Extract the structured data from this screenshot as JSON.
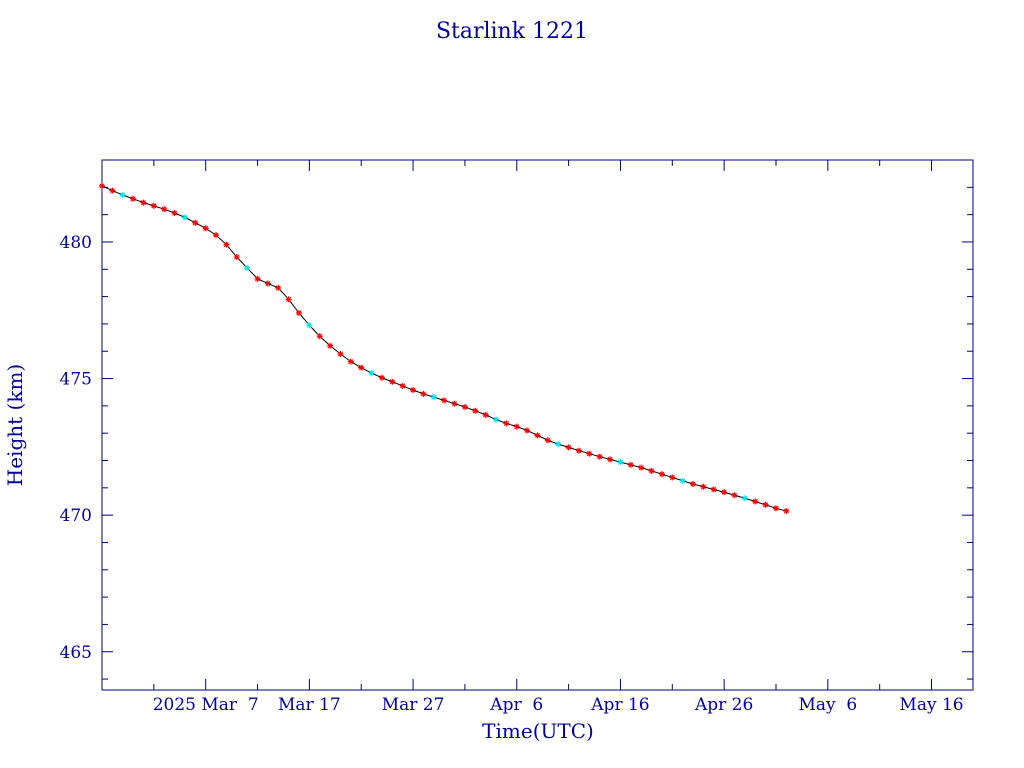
{
  "chart_data": {
    "type": "scatter",
    "title": "Starlink 1221",
    "xlabel": "Time(UTC)",
    "ylabel": "Height (km)",
    "x_range": [
      "2025-02-25",
      "2025-05-20"
    ],
    "ylim": [
      463.6,
      483.0
    ],
    "x_ticks": [
      {
        "date": "2025-03-07",
        "label": "2025 Mar  7"
      },
      {
        "date": "2025-03-17",
        "label": "Mar 17"
      },
      {
        "date": "2025-03-27",
        "label": "Mar 27"
      },
      {
        "date": "2025-04-06",
        "label": "Apr  6"
      },
      {
        "date": "2025-04-16",
        "label": "Apr 16"
      },
      {
        "date": "2025-04-26",
        "label": "Apr 26"
      },
      {
        "date": "2025-05-06",
        "label": "May  6"
      },
      {
        "date": "2025-05-16",
        "label": "May 16"
      }
    ],
    "y_ticks": [
      {
        "value": 465,
        "label": "465"
      },
      {
        "value": 470,
        "label": "470"
      },
      {
        "value": 475,
        "label": "475"
      },
      {
        "value": 480,
        "label": "480"
      }
    ],
    "grid": false,
    "colors": {
      "axis": "#000080",
      "text": "#0000a0",
      "points": "#ff0000",
      "highlight_points": "#00e5ee",
      "line": "#000000"
    },
    "series": [
      {
        "x": [
          "2025-02-25",
          "2025-02-26",
          "2025-02-27",
          "2025-02-28",
          "2025-03-01",
          "2025-03-02",
          "2025-03-03",
          "2025-03-04",
          "2025-03-05",
          "2025-03-06",
          "2025-03-07",
          "2025-03-08",
          "2025-03-09",
          "2025-03-10",
          "2025-03-11",
          "2025-03-12",
          "2025-03-13",
          "2025-03-14",
          "2025-03-15",
          "2025-03-16",
          "2025-03-17",
          "2025-03-18",
          "2025-03-19",
          "2025-03-20",
          "2025-03-21",
          "2025-03-22",
          "2025-03-23",
          "2025-03-24",
          "2025-03-25",
          "2025-03-26",
          "2025-03-27",
          "2025-03-28",
          "2025-03-29",
          "2025-03-30",
          "2025-03-31",
          "2025-04-01",
          "2025-04-02",
          "2025-04-03",
          "2025-04-04",
          "2025-04-05",
          "2025-04-06",
          "2025-04-07",
          "2025-04-08",
          "2025-04-09",
          "2025-04-10",
          "2025-04-11",
          "2025-04-12",
          "2025-04-13",
          "2025-04-14",
          "2025-04-15",
          "2025-04-16",
          "2025-04-17",
          "2025-04-18",
          "2025-04-19",
          "2025-04-20",
          "2025-04-21",
          "2025-04-22",
          "2025-04-23",
          "2025-04-24",
          "2025-04-25",
          "2025-04-26",
          "2025-04-27",
          "2025-04-28",
          "2025-04-29",
          "2025-04-30",
          "2025-05-01",
          "2025-05-02"
        ],
        "y": [
          482.05,
          481.88,
          481.72,
          481.58,
          481.44,
          481.32,
          481.2,
          481.06,
          480.9,
          480.7,
          480.5,
          480.25,
          479.9,
          479.45,
          479.05,
          478.65,
          478.48,
          478.32,
          477.9,
          477.4,
          476.95,
          476.55,
          476.2,
          475.9,
          475.62,
          475.4,
          475.2,
          475.03,
          474.88,
          474.73,
          474.58,
          474.44,
          474.32,
          474.2,
          474.08,
          473.96,
          473.82,
          473.67,
          473.5,
          473.36,
          473.24,
          473.1,
          472.92,
          472.74,
          472.6,
          472.48,
          472.36,
          472.25,
          472.14,
          472.04,
          471.94,
          471.84,
          471.74,
          471.62,
          471.5,
          471.38,
          471.26,
          471.14,
          471.04,
          470.94,
          470.84,
          470.73,
          470.62,
          470.5,
          470.38,
          470.25,
          470.15
        ]
      }
    ]
  }
}
